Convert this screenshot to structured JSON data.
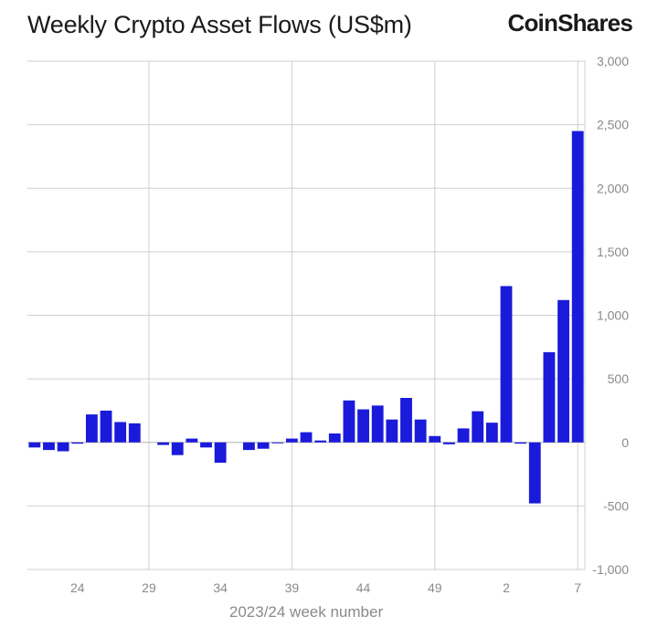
{
  "header": {
    "title": "Weekly Crypto Asset Flows (US$m)",
    "brand": "CoinShares"
  },
  "chart_data": {
    "type": "bar",
    "title": "Weekly Crypto Asset Flows (US$m)",
    "xlabel": "2023/24 week number",
    "ylabel": "US$m",
    "ylim": [
      -1000,
      3000
    ],
    "yticks": [
      -1000,
      -500,
      0,
      500,
      1000,
      1500,
      2000,
      2500,
      3000
    ],
    "ytick_labels": [
      "-1,000",
      "-500",
      "0",
      "500",
      "1,000",
      "1,500",
      "2,000",
      "2,500",
      "3,000"
    ],
    "grid": true,
    "bar_color": "#1a1adb",
    "categories": [
      "21",
      "22",
      "23",
      "24",
      "25",
      "26",
      "27",
      "28",
      "29",
      "30",
      "31",
      "32",
      "33",
      "34",
      "35",
      "36",
      "37",
      "38",
      "39",
      "40",
      "41",
      "42",
      "43",
      "44",
      "45",
      "46",
      "47",
      "48",
      "49",
      "50",
      "51",
      "52",
      "1",
      "2",
      "3",
      "4",
      "5",
      "6",
      "7"
    ],
    "values": [
      -40,
      -60,
      -70,
      -10,
      220,
      250,
      160,
      150,
      0,
      -20,
      -100,
      30,
      -40,
      -160,
      0,
      -60,
      -50,
      -5,
      30,
      80,
      15,
      70,
      330,
      260,
      290,
      180,
      350,
      180,
      50,
      -15,
      110,
      245,
      155,
      1230,
      -10,
      -480,
      710,
      1120,
      2450
    ],
    "xtick_labels": [
      {
        "label": "24",
        "index": 3
      },
      {
        "label": "29",
        "index": 8
      },
      {
        "label": "34",
        "index": 13
      },
      {
        "label": "39",
        "index": 18
      },
      {
        "label": "44",
        "index": 23
      },
      {
        "label": "49",
        "index": 28
      },
      {
        "label": "2",
        "index": 33
      },
      {
        "label": "7",
        "index": 38
      }
    ],
    "vgrid_indices": [
      8,
      18,
      28,
      38
    ]
  }
}
